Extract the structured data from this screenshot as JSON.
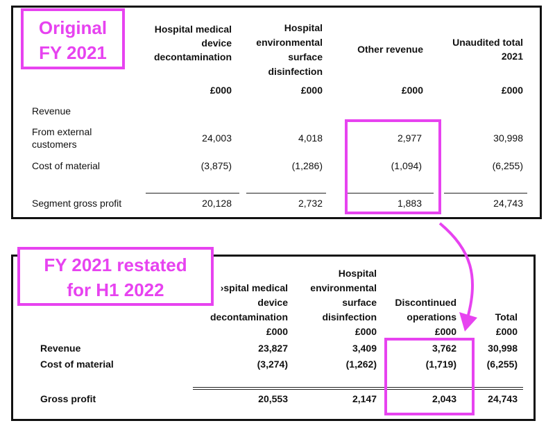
{
  "original": {
    "tag": [
      "Original",
      "FY 2021"
    ],
    "col_headers": [
      [
        "Hospital medical",
        "device",
        "decontamination"
      ],
      [
        "Hospital",
        "environmental",
        "surface",
        "disinfection"
      ],
      [
        "Other revenue"
      ],
      [
        "Unaudited total",
        "2021"
      ]
    ],
    "unit": "£000",
    "rows": [
      {
        "label": [
          "Revenue"
        ],
        "values": []
      },
      {
        "label": [
          "From external",
          "customers"
        ],
        "values": [
          "24,003",
          "4,018",
          "2,977",
          "30,998"
        ]
      },
      {
        "label": [
          "Cost of material"
        ],
        "values": [
          "(3,875)",
          "(1,286)",
          "(1,094)",
          "(6,255)"
        ]
      },
      {
        "label": [
          "Segment gross profit"
        ],
        "values": [
          "20,128",
          "2,732",
          "1,883",
          "24,743"
        ]
      }
    ]
  },
  "restated": {
    "tag": [
      "FY 2021 restated",
      "for H1 2022"
    ],
    "col_headers": [
      [
        "›spital medical",
        "device",
        "decontamination",
        "£000"
      ],
      [
        "Hospital",
        "environmental",
        "surface",
        "disinfection",
        "£000"
      ],
      [
        "Discontinued",
        "operations",
        "£000"
      ],
      [
        "Total",
        "£000"
      ]
    ],
    "rows": [
      {
        "label": "Revenue",
        "values": [
          "23,827",
          "3,409",
          "3,762",
          "30,998"
        ]
      },
      {
        "label": "Cost of material",
        "values": [
          "(3,274)",
          "(1,262)",
          "(1,719)",
          "(6,255)"
        ]
      },
      {
        "label": "Gross profit",
        "values": [
          "20,553",
          "2,147",
          "2,043",
          "24,743"
        ]
      }
    ]
  },
  "colors": {
    "highlight": "#e743f0",
    "border": "#111111"
  }
}
